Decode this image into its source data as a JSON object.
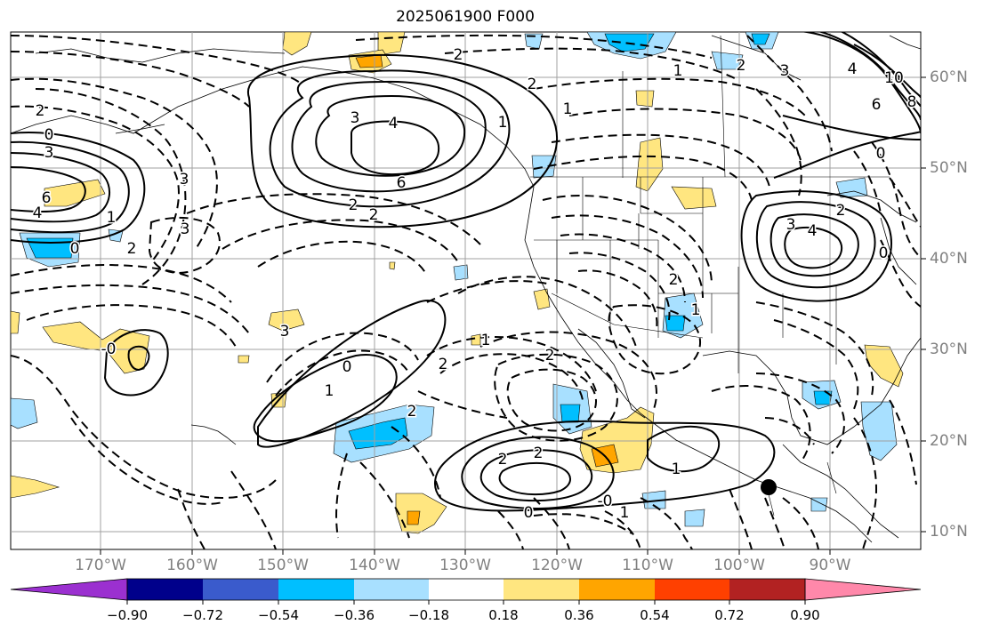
{
  "title": "2025061900 F000",
  "lat_labels": [
    "60°N",
    "50°N",
    "40°N",
    "30°N",
    "20°N",
    "10°N"
  ],
  "lon_labels": [
    "170°W",
    "160°W",
    "150°W",
    "140°W",
    "130°W",
    "120°W",
    "110°W",
    "100°W",
    "90°W"
  ],
  "colorbar": {
    "ticks": [
      "−0.90",
      "−0.72",
      "−0.54",
      "−0.36",
      "−0.18",
      "0.18",
      "0.36",
      "0.54",
      "0.72",
      "0.90"
    ],
    "colors": [
      "#9b30d0",
      "#00008b",
      "#3a5bcc",
      "#00bfff",
      "#a8e0ff",
      "#ffffff",
      "#ffe680",
      "#ffa500",
      "#ff4000",
      "#b22222",
      "#ff88aa"
    ]
  },
  "contour_labels": [
    {
      "text": "2"
    },
    {
      "text": "3"
    },
    {
      "text": "4"
    },
    {
      "text": "6"
    },
    {
      "text": "2"
    },
    {
      "text": "2"
    },
    {
      "text": "3"
    },
    {
      "text": "2"
    },
    {
      "text": "1"
    },
    {
      "text": "0"
    },
    {
      "text": "6"
    },
    {
      "text": "4"
    },
    {
      "text": "2"
    },
    {
      "text": "0"
    },
    {
      "text": "3"
    },
    {
      "text": "3"
    },
    {
      "text": "-0"
    },
    {
      "text": "1"
    },
    {
      "text": "0"
    },
    {
      "text": "2"
    },
    {
      "text": "2"
    },
    {
      "text": "2"
    },
    {
      "text": "1"
    },
    {
      "text": "2"
    },
    {
      "text": "2"
    },
    {
      "text": "1"
    },
    {
      "text": "-0"
    },
    {
      "text": "1"
    },
    {
      "text": "0"
    },
    {
      "text": "4"
    },
    {
      "text": "3"
    },
    {
      "text": "2"
    },
    {
      "text": "0"
    },
    {
      "text": "2"
    },
    {
      "text": "3"
    },
    {
      "text": "1"
    },
    {
      "text": "1"
    },
    {
      "text": "2"
    },
    {
      "text": "1"
    },
    {
      "text": "2"
    },
    {
      "text": "8"
    },
    {
      "text": "10"
    },
    {
      "text": "6"
    },
    {
      "text": "4"
    },
    {
      "text": "3"
    },
    {
      "text": "1"
    },
    {
      "text": "0"
    }
  ],
  "marker": {
    "label": "storm-center"
  }
}
